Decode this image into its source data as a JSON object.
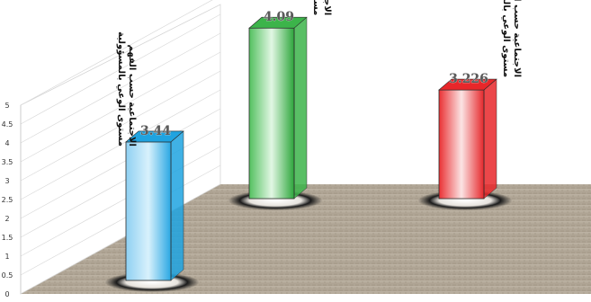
{
  "chart_data": {
    "type": "bar",
    "categories": [
      "مستوى الوعي بالمسؤولية الاجتماعية حسب الفهم",
      "مستوى الوعي بالمسؤولية الاجتماعية حسب الاهتمام",
      "مستوى الوعي بالمسؤولية الاجتماعية حسب المشاركة"
    ],
    "values": [
      3.44,
      4.09,
      3.226
    ],
    "data_labels": [
      "3.44",
      "4.09",
      "3.226"
    ],
    "colors": [
      "#1fa3e0",
      "#3cb44a",
      "#e8272a"
    ],
    "yticks": [
      "0",
      "0.5",
      "1",
      "1.5",
      "2",
      "2.5",
      "3",
      "3.5",
      "4",
      "4.5",
      "5"
    ],
    "ylim": [
      0,
      5
    ],
    "grid": true,
    "style": "3d-column"
  }
}
